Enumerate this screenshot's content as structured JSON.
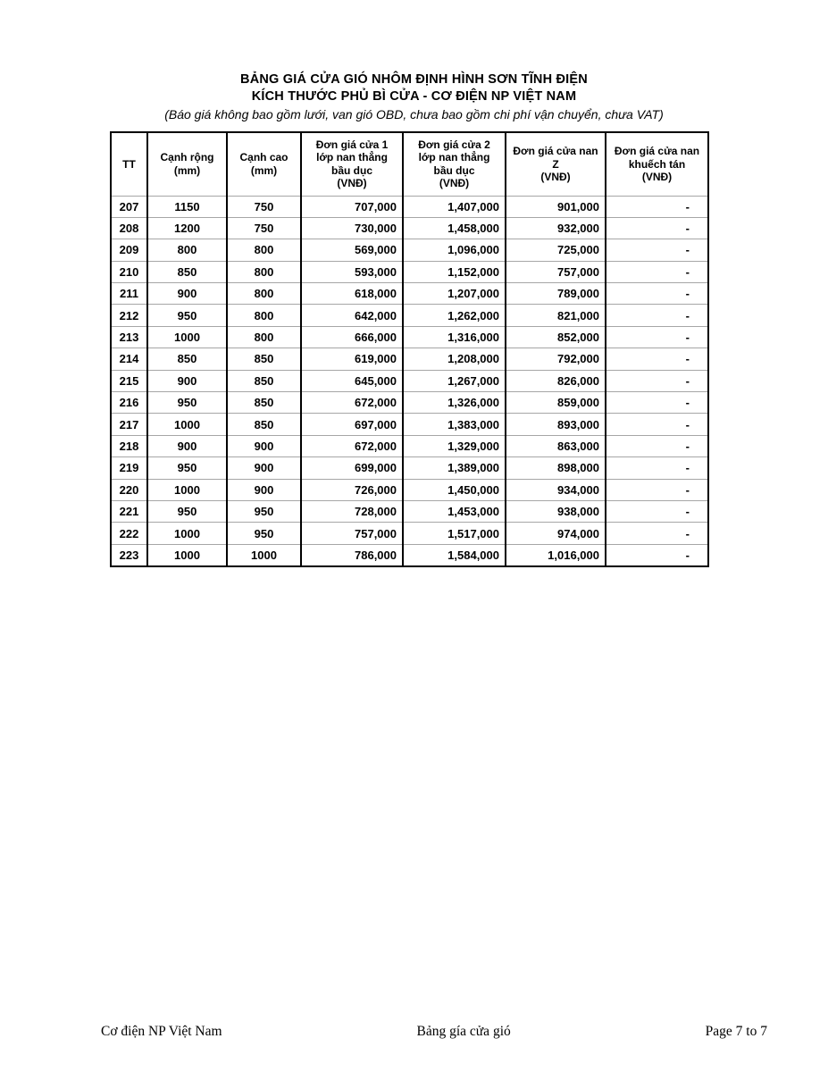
{
  "header": {
    "title_line1": "BẢNG GIÁ CỬA GIÓ NHÔM ĐỊNH HÌNH SƠN TĨNH ĐIỆN",
    "title_line2": "KÍCH THƯỚC PHỦ BÌ CỬA - CƠ ĐIỆN NP VIỆT NAM",
    "note": "(Báo giá không bao gồm lưới, van gió OBD, chưa bao gồm chi phí vận chuyển, chưa VAT)"
  },
  "table": {
    "headers": [
      "TT",
      "Cạnh rộng\n(mm)",
      "Cạnh cao\n(mm)",
      "Đơn giá cửa 1\nlớp nan thẳng\nbầu dục\n(VNĐ)",
      "Đơn giá cửa 2\nlớp nan thẳng\nbầu dục\n(VNĐ)",
      "Đơn giá cửa nan\nZ\n(VNĐ)",
      "Đơn giá cửa nan\nkhuếch tán\n(VNĐ)"
    ],
    "rows": [
      [
        "207",
        "1150",
        "750",
        "707,000",
        "1,407,000",
        "901,000",
        "-"
      ],
      [
        "208",
        "1200",
        "750",
        "730,000",
        "1,458,000",
        "932,000",
        "-"
      ],
      [
        "209",
        "800",
        "800",
        "569,000",
        "1,096,000",
        "725,000",
        "-"
      ],
      [
        "210",
        "850",
        "800",
        "593,000",
        "1,152,000",
        "757,000",
        "-"
      ],
      [
        "211",
        "900",
        "800",
        "618,000",
        "1,207,000",
        "789,000",
        "-"
      ],
      [
        "212",
        "950",
        "800",
        "642,000",
        "1,262,000",
        "821,000",
        "-"
      ],
      [
        "213",
        "1000",
        "800",
        "666,000",
        "1,316,000",
        "852,000",
        "-"
      ],
      [
        "214",
        "850",
        "850",
        "619,000",
        "1,208,000",
        "792,000",
        "-"
      ],
      [
        "215",
        "900",
        "850",
        "645,000",
        "1,267,000",
        "826,000",
        "-"
      ],
      [
        "216",
        "950",
        "850",
        "672,000",
        "1,326,000",
        "859,000",
        "-"
      ],
      [
        "217",
        "1000",
        "850",
        "697,000",
        "1,383,000",
        "893,000",
        "-"
      ],
      [
        "218",
        "900",
        "900",
        "672,000",
        "1,329,000",
        "863,000",
        "-"
      ],
      [
        "219",
        "950",
        "900",
        "699,000",
        "1,389,000",
        "898,000",
        "-"
      ],
      [
        "220",
        "1000",
        "900",
        "726,000",
        "1,450,000",
        "934,000",
        "-"
      ],
      [
        "221",
        "950",
        "950",
        "728,000",
        "1,453,000",
        "938,000",
        "-"
      ],
      [
        "222",
        "1000",
        "950",
        "757,000",
        "1,517,000",
        "974,000",
        "-"
      ],
      [
        "223",
        "1000",
        "1000",
        "786,000",
        "1,584,000",
        "1,016,000",
        "-"
      ]
    ]
  },
  "footer": {
    "left": "Cơ điện NP Việt Nam",
    "center": "Bảng gía cửa gió",
    "right": "Page 7 to 7"
  }
}
